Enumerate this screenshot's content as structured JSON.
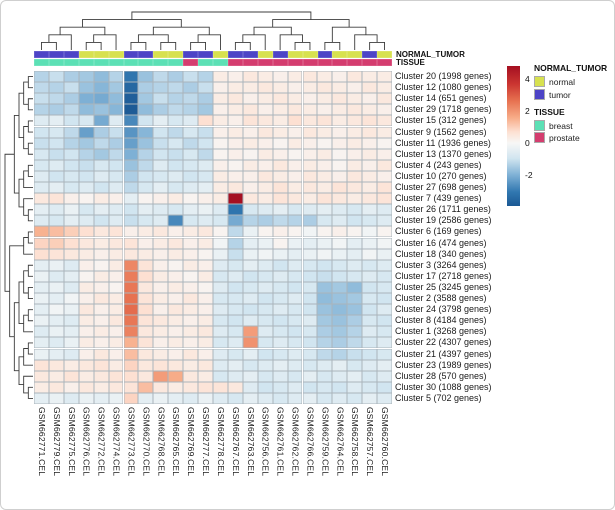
{
  "figure": {
    "grid_color": "#aab4bb",
    "dendrogram_color": "#3c3c3c",
    "background": "#ffffff"
  },
  "annotations": {
    "normal_tumor_label": "NORMAL_TUMOR",
    "tissue_label": "TISSUE",
    "normal_tumor": [
      "tumor",
      "tumor",
      "tumor",
      "normal",
      "normal",
      "normal",
      "tumor",
      "tumor",
      "normal",
      "normal",
      "tumor",
      "tumor",
      "normal",
      "tumor",
      "tumor",
      "normal",
      "tumor",
      "normal",
      "normal",
      "tumor",
      "normal",
      "normal",
      "tumor",
      "normal"
    ],
    "tissue": [
      "breast",
      "breast",
      "breast",
      "breast",
      "breast",
      "breast",
      "breast",
      "breast",
      "breast",
      "breast",
      "prostate",
      "breast",
      "breast",
      "prostate",
      "prostate",
      "prostate",
      "prostate",
      "prostate",
      "prostate",
      "prostate",
      "prostate",
      "prostate",
      "prostate",
      "prostate"
    ],
    "colors": {
      "normal": "#d7e14f",
      "tumor": "#4d44c6",
      "breast": "#5ce0b5",
      "prostate": "#d43d6f"
    }
  },
  "legend": {
    "colorbar": {
      "ticks": [
        4,
        2,
        0,
        -2
      ],
      "top_value": 4.8,
      "bottom_value": -3.9
    },
    "normal_tumor": {
      "title": "NORMAL_TUMOR",
      "items": [
        {
          "label": "normal",
          "color": "#d7e14f"
        },
        {
          "label": "tumor",
          "color": "#4d44c6"
        }
      ]
    },
    "tissue": {
      "title": "TISSUE",
      "items": [
        {
          "label": "breast",
          "color": "#5ce0b5"
        },
        {
          "label": "prostate",
          "color": "#d43d6f"
        }
      ]
    }
  },
  "chart_data": {
    "type": "heatmap",
    "title": "",
    "colormap": "RdBu reversed (red = high, blue = low)",
    "value_range": [
      -3.9,
      4.8
    ],
    "rows": [
      "Cluster 20 (1998 genes)",
      "Cluster 12 (1080 genes)",
      "Cluster 14 (651 genes)",
      "Cluster 29 (1718 genes)",
      "Cluster 15 (312 genes)",
      "Cluster 9 (1562 genes)",
      "Cluster 11 (1936 genes)",
      "Cluster 13 (1370 genes)",
      "Cluster 4 (243 genes)",
      "Cluster 10 (270 genes)",
      "Cluster 27 (698 genes)",
      "Cluster 7 (439 genes)",
      "Cluster 26 (1711 genes)",
      "Cluster 19 (2586 genes)",
      "Cluster 6 (169 genes)",
      "Cluster 16 (474 genes)",
      "Cluster 18 (340 genes)",
      "Cluster 3 (3264 genes)",
      "Cluster 17 (2718 genes)",
      "Cluster 25 (3245 genes)",
      "Cluster 2 (3588 genes)",
      "Cluster 24 (3798 genes)",
      "Cluster 8 (4184 genes)",
      "Cluster 1 (3268 genes)",
      "Cluster 22 (4307 genes)",
      "Cluster 21 (4397 genes)",
      "Cluster 23 (1989 genes)",
      "Cluster 28 (570 genes)",
      "Cluster 30 (1088 genes)",
      "Cluster 5 (702 genes)"
    ],
    "columns": [
      "GSM662771.CEL",
      "GSM662779.CEL",
      "GSM662775.CEL",
      "GSM662776.CEL",
      "GSM662772.CEL",
      "GSM662774.CEL",
      "GSM662773.CEL",
      "GSM662770.CEL",
      "GSM662768.CEL",
      "GSM662765.CEL",
      "GSM662769.CEL",
      "GSM662777.CEL",
      "GSM662778.CEL",
      "GSM662767.CEL",
      "GSM662763.CEL",
      "GSM662756.CEL",
      "GSM662761.CEL",
      "GSM662762.CEL",
      "GSM662766.CEL",
      "GSM662759.CEL",
      "GSM662764.CEL",
      "GSM662758.CEL",
      "GSM662757.CEL",
      "GSM662760.CEL"
    ],
    "values": [
      [
        -0.9,
        -0.7,
        -1.0,
        -1.1,
        -1.3,
        -0.9,
        -2.6,
        -1.2,
        -0.8,
        -1.0,
        -0.7,
        -0.9,
        0.3,
        0.2,
        0.4,
        0.3,
        0.2,
        0.3,
        0.4,
        0.3,
        0.2,
        0.4,
        0.3,
        0.3
      ],
      [
        -0.8,
        -0.9,
        -0.7,
        -1.2,
        -1.4,
        -1.1,
        -3.2,
        -1.0,
        -0.9,
        -0.8,
        -1.0,
        -0.7,
        0.2,
        0.3,
        0.3,
        0.4,
        0.3,
        0.2,
        0.3,
        0.4,
        0.3,
        0.2,
        0.4,
        0.3
      ],
      [
        -0.7,
        -0.8,
        -1.0,
        -1.5,
        -1.6,
        -1.3,
        -3.6,
        -1.1,
        -0.7,
        -0.9,
        -0.8,
        -1.0,
        0.3,
        0.4,
        0.2,
        0.3,
        0.4,
        0.3,
        0.2,
        0.3,
        0.4,
        0.3,
        0.2,
        0.4
      ],
      [
        -0.9,
        -1.0,
        -0.8,
        -1.3,
        -1.2,
        -1.4,
        -3.8,
        -1.3,
        -1.0,
        -0.8,
        -0.9,
        -1.1,
        0.2,
        0.3,
        0.4,
        0.2,
        0.3,
        0.4,
        0.3,
        0.2,
        0.3,
        0.4,
        0.3,
        0.2
      ],
      [
        -0.4,
        -0.3,
        -0.6,
        -0.5,
        -1.6,
        -0.4,
        -2.2,
        -0.6,
        -0.3,
        -0.5,
        -0.4,
        0.6,
        0.3,
        0.2,
        0.5,
        0.4,
        0.3,
        0.6,
        0.4,
        0.5,
        0.3,
        0.4,
        0.5,
        0.4
      ],
      [
        -0.6,
        -0.5,
        -0.8,
        -1.8,
        -1.0,
        -0.7,
        -2.0,
        -1.4,
        -0.6,
        -0.8,
        -0.5,
        -0.7,
        0.2,
        0.3,
        0.2,
        0.4,
        0.3,
        0.2,
        0.4,
        0.3,
        0.2,
        0.3,
        0.4,
        0.3
      ],
      [
        -0.7,
        -0.6,
        -0.9,
        -1.1,
        -0.8,
        -1.0,
        -1.8,
        -1.2,
        -0.7,
        -0.5,
        -0.8,
        -0.6,
        0.1,
        0.2,
        0.3,
        0.2,
        0.1,
        0.3,
        0.2,
        0.1,
        0.2,
        0.3,
        0.2,
        0.1
      ],
      [
        -0.5,
        -0.7,
        -0.6,
        -0.9,
        -1.1,
        -0.8,
        -1.5,
        -0.9,
        -0.6,
        -0.7,
        -0.5,
        -0.8,
        0.1,
        0.2,
        0.1,
        0.3,
        0.2,
        0.1,
        0.2,
        0.3,
        0.1,
        0.2,
        0.3,
        0.2
      ],
      [
        -0.5,
        -0.4,
        -0.6,
        -0.7,
        -0.5,
        -0.6,
        -1.2,
        -0.8,
        -0.4,
        -0.6,
        -0.5,
        -0.4,
        0.2,
        0.1,
        0.3,
        0.2,
        0.4,
        0.2,
        0.3,
        0.2,
        0.1,
        0.3,
        0.2,
        0.4
      ],
      [
        -0.4,
        -0.6,
        -0.5,
        -0.6,
        -0.4,
        -0.5,
        -1.0,
        -0.6,
        -0.5,
        -0.4,
        -0.6,
        -0.5,
        0.3,
        0.2,
        0.2,
        0.4,
        0.3,
        0.2,
        0.4,
        0.3,
        0.2,
        0.4,
        0.3,
        0.2
      ],
      [
        -0.4,
        -0.3,
        -0.5,
        -0.4,
        -0.6,
        -0.4,
        -0.8,
        -0.5,
        -0.3,
        -0.5,
        -0.4,
        -0.3,
        0.3,
        0.4,
        0.2,
        0.3,
        0.5,
        0.3,
        0.4,
        0.3,
        0.5,
        0.4,
        0.3,
        0.5
      ],
      [
        0.4,
        0.5,
        0.2,
        0.1,
        0.3,
        0.2,
        -0.3,
        0.1,
        0.2,
        0.3,
        0.1,
        0.2,
        0.3,
        4.8,
        0.4,
        0.3,
        0.5,
        0.4,
        0.3,
        0.5,
        0.4,
        0.3,
        0.4,
        0.5
      ],
      [
        -0.3,
        -0.4,
        -0.2,
        -0.5,
        -0.3,
        -0.4,
        -0.6,
        -0.3,
        -0.4,
        -0.5,
        -0.3,
        -0.2,
        -0.4,
        -2.6,
        -0.5,
        -0.4,
        -0.3,
        -0.5,
        -0.4,
        -0.3,
        -0.4,
        -0.5,
        -0.3,
        -0.4
      ],
      [
        -0.4,
        -0.5,
        -0.3,
        -0.4,
        -0.6,
        -0.4,
        -0.7,
        -0.5,
        -0.4,
        -2.2,
        -0.5,
        -0.4,
        -0.5,
        -1.6,
        -0.9,
        -1.0,
        -0.8,
        -0.9,
        -1.0,
        -0.5,
        -0.4,
        -0.6,
        -0.5,
        -0.4
      ],
      [
        1.4,
        1.2,
        0.9,
        0.6,
        0.4,
        0.5,
        0.2,
        0.3,
        0.4,
        0.2,
        0.3,
        0.4,
        0.1,
        -0.8,
        -0.2,
        0.1,
        0.2,
        0.1,
        -0.1,
        0.1,
        0.2,
        0.1,
        -0.1,
        0.1
      ],
      [
        0.8,
        0.9,
        0.6,
        0.4,
        0.3,
        0.4,
        0.5,
        0.2,
        0.3,
        0.4,
        0.2,
        0.3,
        -0.1,
        -0.9,
        -0.3,
        -0.2,
        0.1,
        -0.2,
        -0.3,
        -0.2,
        -0.1,
        -0.3,
        -0.2,
        -0.1
      ],
      [
        0.6,
        0.5,
        0.4,
        0.3,
        0.2,
        0.3,
        0.4,
        0.3,
        0.2,
        0.3,
        0.2,
        0.1,
        -0.2,
        -0.7,
        -0.2,
        -0.1,
        -0.2,
        -0.3,
        -0.2,
        -0.1,
        -0.2,
        -0.3,
        -0.1,
        -0.2
      ],
      [
        -0.3,
        -0.2,
        -0.4,
        0.2,
        0.1,
        0.3,
        2.2,
        0.5,
        0.2,
        0.1,
        0.3,
        0.2,
        -0.4,
        -0.5,
        -0.3,
        -0.4,
        -0.6,
        -0.4,
        -0.5,
        -0.6,
        -0.5,
        -0.4,
        -0.5,
        -0.4
      ],
      [
        -0.2,
        -0.4,
        -0.3,
        0.1,
        0.3,
        0.2,
        2.4,
        0.6,
        0.3,
        0.2,
        0.1,
        0.3,
        -0.5,
        -0.4,
        -0.6,
        -0.5,
        -0.4,
        -0.5,
        -0.6,
        -0.7,
        -0.6,
        -0.5,
        -0.4,
        -0.5
      ],
      [
        -0.3,
        -0.2,
        -0.4,
        0.3,
        0.2,
        0.1,
        2.5,
        0.4,
        0.2,
        0.3,
        0.2,
        0.1,
        -0.4,
        -0.6,
        -0.5,
        -0.4,
        -0.5,
        -0.6,
        -0.5,
        -1.2,
        -1.1,
        -1.3,
        -0.6,
        -0.5
      ],
      [
        -0.2,
        -0.3,
        -0.1,
        0.2,
        0.4,
        0.3,
        2.6,
        0.5,
        0.3,
        0.2,
        0.4,
        0.2,
        -0.5,
        -0.5,
        -0.4,
        -0.6,
        -0.5,
        -0.4,
        -0.6,
        -1.3,
        -1.2,
        -1.1,
        -0.5,
        -0.6
      ],
      [
        -0.3,
        -0.1,
        -0.2,
        0.4,
        0.2,
        0.3,
        2.7,
        0.6,
        0.2,
        0.4,
        0.3,
        0.2,
        -0.4,
        -0.5,
        -0.6,
        -0.5,
        -0.4,
        -0.5,
        -0.6,
        -1.2,
        -1.3,
        -1.2,
        -0.6,
        -0.4
      ],
      [
        -0.2,
        -0.3,
        -0.4,
        0.3,
        0.2,
        0.4,
        2.5,
        0.5,
        0.4,
        0.3,
        0.2,
        0.3,
        -0.5,
        -0.6,
        -0.4,
        -0.5,
        -0.6,
        -0.5,
        -0.4,
        -1.1,
        -1.2,
        -1.0,
        -0.5,
        -0.6
      ],
      [
        -0.4,
        -0.2,
        -0.3,
        0.2,
        0.3,
        0.2,
        2.3,
        0.4,
        0.3,
        0.2,
        0.3,
        0.4,
        -0.4,
        -0.5,
        1.8,
        -0.4,
        -0.5,
        -0.6,
        -0.5,
        -1.0,
        -1.1,
        -0.9,
        -0.4,
        -0.5
      ],
      [
        -0.3,
        -0.4,
        -0.2,
        0.3,
        0.2,
        0.3,
        1.4,
        0.5,
        0.2,
        0.3,
        0.2,
        0.3,
        -0.5,
        -0.4,
        2.0,
        -0.5,
        -0.4,
        -0.5,
        -0.6,
        -0.9,
        -1.0,
        -0.8,
        -0.5,
        -0.4
      ],
      [
        -0.2,
        -0.3,
        -0.4,
        0.2,
        0.4,
        0.2,
        1.2,
        0.4,
        0.3,
        0.2,
        0.4,
        0.2,
        -0.4,
        -0.5,
        -0.3,
        -0.6,
        -0.5,
        -0.4,
        -0.5,
        -0.8,
        -0.9,
        -0.7,
        -0.6,
        -0.5
      ],
      [
        0.5,
        0.4,
        0.3,
        0.4,
        0.5,
        0.3,
        0.8,
        0.4,
        0.5,
        0.4,
        0.3,
        0.4,
        -0.4,
        -0.3,
        -0.5,
        -0.4,
        -0.3,
        -0.4,
        -0.5,
        -0.4,
        -0.3,
        -0.5,
        -0.4,
        -0.3
      ],
      [
        0.4,
        0.3,
        0.5,
        0.3,
        0.4,
        0.5,
        0.6,
        0.4,
        1.8,
        1.5,
        0.4,
        0.3,
        -0.5,
        -0.4,
        -0.3,
        -0.5,
        -0.4,
        -0.5,
        -0.3,
        -0.5,
        -0.4,
        -0.3,
        -0.5,
        -0.4
      ],
      [
        0.3,
        0.4,
        0.2,
        0.4,
        0.3,
        0.4,
        0.5,
        1.2,
        0.4,
        0.3,
        0.4,
        0.5,
        0.5,
        0.4,
        -0.4,
        -0.6,
        -0.5,
        -0.4,
        -0.6,
        -0.5,
        -0.6,
        -0.4,
        -0.5,
        -0.6
      ],
      [
        -0.3,
        -0.2,
        -0.4,
        -0.2,
        -0.3,
        -0.2,
        0.8,
        -0.3,
        -0.2,
        -0.3,
        -0.4,
        -0.2,
        -0.4,
        -0.5,
        -0.3,
        -0.4,
        -0.5,
        -0.4,
        -0.3,
        -0.5,
        -0.4,
        -0.5,
        -0.3,
        -0.4
      ]
    ],
    "col_dendrogram": [
      [
        [
          [
            [
              0,
              1
            ],
            2
          ],
          [
            [
              3,
              4
            ],
            5
          ]
        ],
        [
          [
            [
              6,
              7
            ],
            [
              8,
              9
            ]
          ],
          [
            [
              10,
              11
            ],
            12
          ]
        ]
      ],
      [
        [
          [
            [
              13,
              14
            ],
            15
          ],
          [
            16,
            [
              17,
              18
            ]
          ]
        ],
        [
          [
            19,
            20
          ],
          [
            21,
            [
              22,
              23
            ]
          ]
        ]
      ]
    ],
    "row_dendrogram": [
      [
        [
          [
            [
              0,
              1
            ],
            [
              2,
              3
            ]
          ],
          [
            [
              4,
              5
            ],
            [
              6,
              7
            ]
          ]
        ],
        [
          [
            [
              8,
              9
            ],
            10
          ],
          [
            11,
            [
              12,
              13
            ]
          ]
        ]
      ],
      [
        [
          [
            14,
            15
          ],
          16
        ],
        [
          [
            [
              [
                17,
                18
              ],
              [
                19,
                20
              ]
            ],
            [
              [
                21,
                22
              ],
              23
            ]
          ],
          [
            [
              [
                24,
                25
              ],
              26
            ],
            [
              27,
              [
                28,
                29
              ]
            ]
          ]
        ]
      ]
    ]
  }
}
